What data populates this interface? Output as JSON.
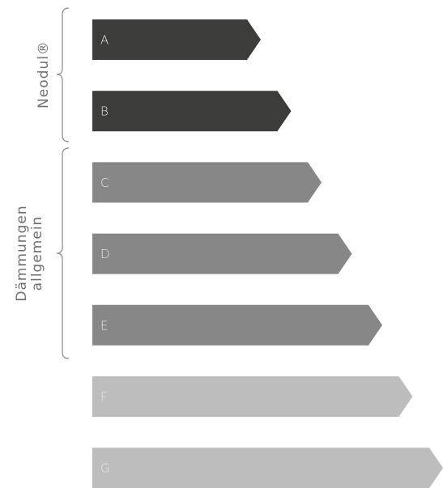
{
  "arrows": [
    {
      "label": "A"
    },
    {
      "label": "B"
    },
    {
      "label": "C"
    },
    {
      "label": "D"
    },
    {
      "label": "E"
    },
    {
      "label": "F"
    },
    {
      "label": "G"
    }
  ],
  "groups": [
    {
      "lines": [
        "Neodul®"
      ]
    },
    {
      "lines": [
        "Dämmungen",
        "allgemein"
      ]
    }
  ]
}
